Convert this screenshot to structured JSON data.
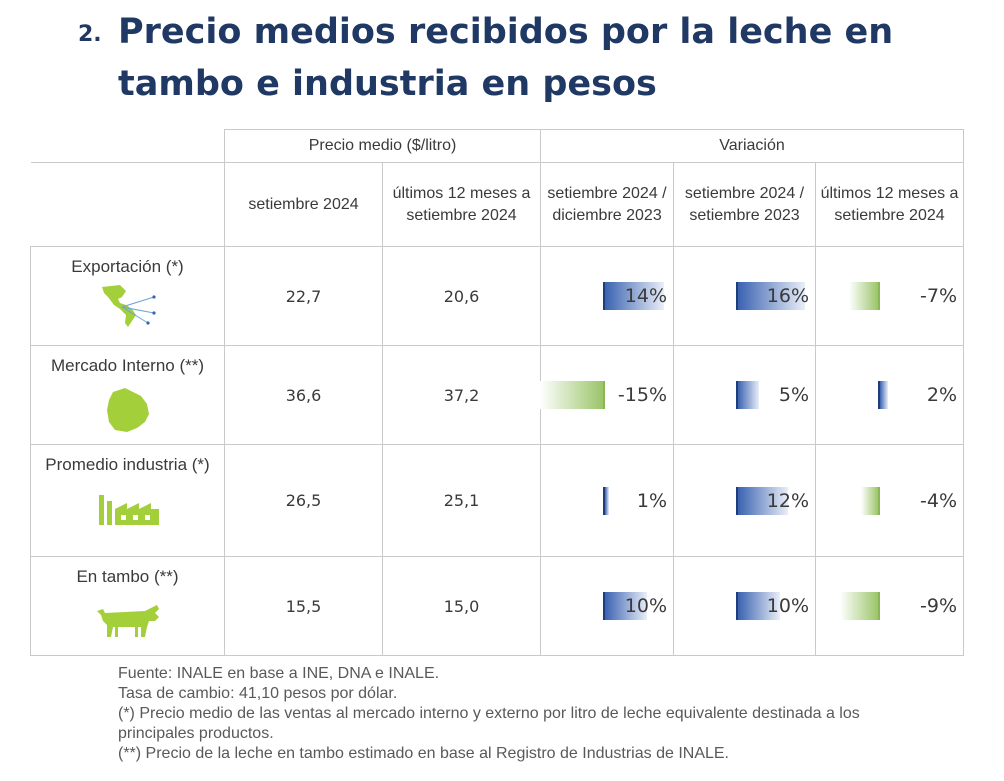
{
  "title": {
    "number": "2.",
    "text": "Precio medios recibidos por la leche en tambo e industria en pesos"
  },
  "colors": {
    "title": "#1f3864",
    "value": "#0b6cb3",
    "positive_bar": "#3b63b1",
    "negative_bar": "#9bc56a",
    "icon": "#a3cf3a"
  },
  "table": {
    "group_headers": {
      "price": "Precio medio ($/litro)",
      "variation": "Variación"
    },
    "sub_headers": {
      "price_month": "setiembre 2024",
      "price_12m": "últimos 12 meses a setiembre 2024",
      "var_vs_dec": "setiembre 2024 / diciembre 2023",
      "var_yoy": "setiembre 2024 / setiembre 2023",
      "var_12m": "últimos 12 meses a setiembre 2024"
    },
    "rows": [
      {
        "label": "Exportación (*)",
        "icon": "americas-map-icon",
        "price_month": "22,7",
        "price_12m": "20,6",
        "var_vs_dec": "14%",
        "var_yoy": "16%",
        "var_12m": "-7%",
        "var_values": [
          14,
          16,
          -7
        ]
      },
      {
        "label": "Mercado Interno (**)",
        "icon": "uruguay-map-icon",
        "price_month": "36,6",
        "price_12m": "37,2",
        "var_vs_dec": "-15%",
        "var_yoy": "5%",
        "var_12m": "2%",
        "var_values": [
          -15,
          5,
          2
        ]
      },
      {
        "label": "Promedio industria (*)",
        "icon": "factory-icon",
        "price_month": "26,5",
        "price_12m": "25,1",
        "var_vs_dec": "1%",
        "var_yoy": "12%",
        "var_12m": "-4%",
        "var_values": [
          1,
          12,
          -4
        ]
      },
      {
        "label": "En tambo (**)",
        "icon": "cow-icon",
        "price_month": "15,5",
        "price_12m": "15,0",
        "var_vs_dec": "10%",
        "var_yoy": "10%",
        "var_12m": "-9%",
        "var_values": [
          10,
          10,
          -9
        ]
      }
    ]
  },
  "footer": {
    "source": "Fuente: INALE en base a INE, DNA e INALE.",
    "exchange": "Tasa de cambio: 41,10 pesos por dólar.",
    "note1": "(*) Precio medio de las ventas al mercado interno y externo por litro de leche equivalente destinada a los principales productos.",
    "note2": "(**) Precio de la leche en tambo estimado en base al Registro de Industrias de INALE."
  }
}
